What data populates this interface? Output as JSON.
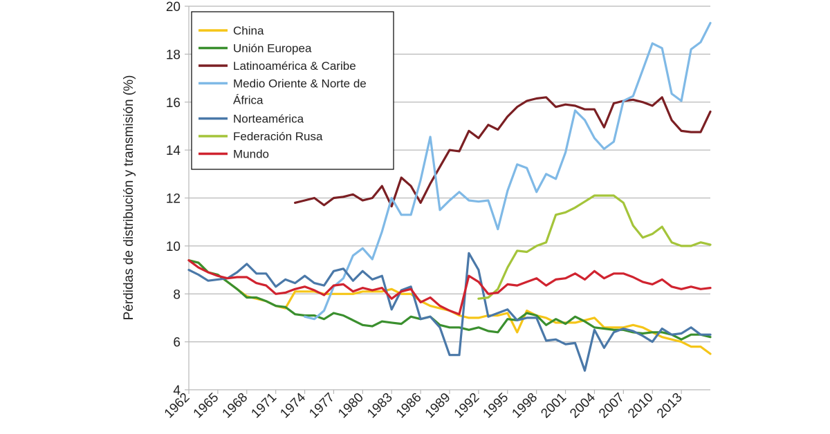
{
  "chart_data": {
    "type": "line",
    "title": "",
    "xlabel": "",
    "ylabel": "Pérdidas de distribución y transmisión (%)",
    "xlim": [
      1962,
      2016
    ],
    "ylim": [
      4,
      20
    ],
    "y_ticks": [
      4,
      6,
      8,
      10,
      12,
      14,
      16,
      18,
      20
    ],
    "x_tick_labels": [
      "1962",
      "1965",
      "1968",
      "1971",
      "1974",
      "1977",
      "1980",
      "1983",
      "1986",
      "1989",
      "1992",
      "1995",
      "1998",
      "2001",
      "2004",
      "2007",
      "2010",
      "2013"
    ],
    "grid": "horizontal",
    "legend_position": "top-left",
    "series": [
      {
        "name": "China",
        "color": "#f5c518",
        "x": [
          1962,
          1963,
          1964,
          1965,
          1966,
          1967,
          1968,
          1969,
          1970,
          1971,
          1972,
          1973,
          1974,
          1975,
          1976,
          1977,
          1978,
          1979,
          1980,
          1981,
          1982,
          1983,
          1984,
          1985,
          1986,
          1987,
          1988,
          1989,
          1990,
          1991,
          1992,
          1993,
          1994,
          1995,
          1996,
          1997,
          1998,
          1999,
          2000,
          2001,
          2002,
          2003,
          2004,
          2005,
          2006,
          2007,
          2008,
          2009,
          2010,
          2011,
          2012,
          2013,
          2014,
          2015,
          2016
        ],
        "y": [
          9.4,
          9.3,
          8.9,
          8.8,
          8.5,
          8.2,
          7.9,
          7.8,
          7.7,
          7.5,
          7.4,
          8.1,
          8.1,
          8.1,
          8.0,
          8.0,
          8.0,
          8.0,
          8.1,
          8.1,
          8.1,
          8.2,
          8.0,
          8.0,
          7.7,
          7.5,
          7.4,
          7.3,
          7.1,
          7.0,
          7.0,
          7.1,
          7.1,
          7.2,
          6.4,
          7.3,
          7.1,
          7.0,
          6.8,
          6.8,
          6.8,
          6.9,
          7.0,
          6.6,
          6.6,
          6.6,
          6.7,
          6.6,
          6.4,
          6.2,
          6.1,
          6.0,
          5.8,
          5.8,
          5.5
        ]
      },
      {
        "name": "Unión Europea",
        "color": "#3a8f2e",
        "x": [
          1962,
          1963,
          1964,
          1965,
          1966,
          1967,
          1968,
          1969,
          1970,
          1971,
          1972,
          1973,
          1974,
          1975,
          1976,
          1977,
          1978,
          1979,
          1980,
          1981,
          1982,
          1983,
          1984,
          1985,
          1986,
          1987,
          1988,
          1989,
          1990,
          1991,
          1992,
          1993,
          1994,
          1995,
          1996,
          1997,
          1998,
          1999,
          2000,
          2001,
          2002,
          2003,
          2004,
          2005,
          2006,
          2007,
          2008,
          2009,
          2010,
          2011,
          2012,
          2013,
          2014,
          2015,
          2016
        ],
        "y": [
          9.4,
          9.3,
          8.9,
          8.8,
          8.5,
          8.2,
          7.85,
          7.85,
          7.7,
          7.5,
          7.45,
          7.15,
          7.1,
          7.1,
          6.95,
          7.2,
          7.1,
          6.9,
          6.7,
          6.65,
          6.85,
          6.8,
          6.75,
          7.05,
          6.95,
          7.05,
          6.7,
          6.6,
          6.6,
          6.5,
          6.6,
          6.45,
          6.4,
          6.95,
          6.9,
          7.2,
          7.1,
          6.7,
          6.95,
          6.75,
          7.05,
          6.85,
          6.6,
          6.55,
          6.5,
          6.5,
          6.4,
          6.35,
          6.4,
          6.4,
          6.3,
          6.1,
          6.3,
          6.3,
          6.2
        ]
      },
      {
        "name": "Latinoamérica & Caribe",
        "color": "#7b1f23",
        "x": [
          1973,
          1974,
          1975,
          1976,
          1977,
          1978,
          1979,
          1980,
          1981,
          1982,
          1983,
          1984,
          1985,
          1986,
          1987,
          1988,
          1989,
          1990,
          1991,
          1992,
          1993,
          1994,
          1995,
          1996,
          1997,
          1998,
          1999,
          2000,
          2001,
          2002,
          2003,
          2004,
          2005,
          2006,
          2007,
          2008,
          2009,
          2010,
          2011,
          2012,
          2013,
          2014,
          2015,
          2016
        ],
        "y": [
          11.8,
          11.9,
          12.0,
          11.7,
          12.0,
          12.05,
          12.15,
          11.9,
          12.0,
          12.5,
          11.65,
          12.85,
          12.5,
          11.8,
          12.6,
          13.3,
          14.0,
          13.95,
          14.8,
          14.5,
          15.05,
          14.85,
          15.4,
          15.8,
          16.05,
          16.15,
          16.2,
          15.8,
          15.9,
          15.85,
          15.7,
          15.7,
          14.95,
          15.95,
          16.05,
          16.1,
          16.0,
          15.85,
          16.2,
          15.25,
          14.8,
          14.75,
          14.75,
          15.6
        ]
      },
      {
        "name": "Medio Oriente & Norte de África",
        "color": "#7fb9e6",
        "x": [
          1974,
          1975,
          1976,
          1977,
          1978,
          1979,
          1980,
          1981,
          1982,
          1983,
          1984,
          1985,
          1986,
          1987,
          1988,
          1989,
          1990,
          1991,
          1992,
          1993,
          1994,
          1995,
          1996,
          1997,
          1998,
          1999,
          2000,
          2001,
          2002,
          2003,
          2004,
          2005,
          2006,
          2007,
          2008,
          2009,
          2010,
          2011,
          2012,
          2013,
          2014,
          2015,
          2016
        ],
        "y": [
          7.05,
          6.95,
          7.3,
          8.3,
          8.65,
          9.6,
          9.9,
          9.45,
          10.6,
          12.0,
          11.3,
          11.3,
          12.75,
          14.55,
          11.5,
          11.9,
          12.25,
          11.9,
          11.85,
          11.9,
          10.7,
          12.3,
          13.4,
          13.25,
          12.25,
          13.0,
          12.8,
          13.9,
          15.65,
          15.25,
          14.5,
          14.05,
          14.35,
          16.05,
          16.25,
          17.35,
          18.45,
          18.25,
          16.35,
          16.05,
          18.2,
          18.5,
          19.3
        ]
      },
      {
        "name": "Norteamérica",
        "color": "#4a78a8",
        "x": [
          1962,
          1963,
          1964,
          1965,
          1966,
          1967,
          1968,
          1969,
          1970,
          1971,
          1972,
          1973,
          1974,
          1975,
          1976,
          1977,
          1978,
          1979,
          1980,
          1981,
          1982,
          1983,
          1984,
          1985,
          1986,
          1987,
          1988,
          1989,
          1990,
          1991,
          1992,
          1993,
          1994,
          1995,
          1996,
          1997,
          1998,
          1999,
          2000,
          2001,
          2002,
          2003,
          2004,
          2005,
          2006,
          2007,
          2008,
          2009,
          2010,
          2011,
          2012,
          2013,
          2014,
          2015,
          2016
        ],
        "y": [
          9.0,
          8.8,
          8.55,
          8.6,
          8.65,
          8.9,
          9.25,
          8.85,
          8.85,
          8.3,
          8.6,
          8.45,
          8.75,
          8.45,
          8.35,
          8.95,
          9.05,
          8.55,
          8.95,
          8.6,
          8.75,
          7.35,
          8.15,
          8.3,
          6.95,
          7.05,
          6.6,
          5.45,
          5.45,
          9.7,
          9.0,
          7.05,
          7.2,
          7.35,
          6.9,
          7.0,
          7.0,
          6.05,
          6.1,
          5.9,
          5.95,
          4.8,
          6.5,
          5.75,
          6.4,
          6.55,
          6.45,
          6.25,
          6.0,
          6.55,
          6.3,
          6.35,
          6.6,
          6.3,
          6.3
        ]
      },
      {
        "name": "Federación Rusa",
        "color": "#a4c43a",
        "x": [
          1992,
          1993,
          1994,
          1995,
          1996,
          1997,
          1998,
          1999,
          2000,
          2001,
          2002,
          2003,
          2004,
          2005,
          2006,
          2007,
          2008,
          2009,
          2010,
          2011,
          2012,
          2013,
          2014,
          2015,
          2016
        ],
        "y": [
          7.8,
          7.85,
          8.2,
          9.1,
          9.8,
          9.75,
          10.0,
          10.15,
          11.3,
          11.4,
          11.6,
          11.85,
          12.1,
          12.1,
          12.1,
          11.8,
          10.85,
          10.35,
          10.5,
          10.8,
          10.15,
          10.0,
          10.0,
          10.15,
          10.05
        ]
      },
      {
        "name": "Mundo",
        "color": "#d0232f",
        "x": [
          1962,
          1963,
          1964,
          1965,
          1966,
          1967,
          1968,
          1969,
          1970,
          1971,
          1972,
          1973,
          1974,
          1975,
          1976,
          1977,
          1978,
          1979,
          1980,
          1981,
          1982,
          1983,
          1984,
          1985,
          1986,
          1987,
          1988,
          1989,
          1990,
          1991,
          1992,
          1993,
          1994,
          1995,
          1996,
          1997,
          1998,
          1999,
          2000,
          2001,
          2002,
          2003,
          2004,
          2005,
          2006,
          2007,
          2008,
          2009,
          2010,
          2011,
          2012,
          2013,
          2014,
          2015,
          2016
        ],
        "y": [
          9.4,
          9.1,
          8.9,
          8.75,
          8.65,
          8.7,
          8.7,
          8.45,
          8.35,
          8.0,
          8.05,
          8.2,
          8.3,
          8.15,
          7.95,
          8.35,
          8.4,
          8.1,
          8.25,
          8.15,
          8.25,
          7.8,
          8.1,
          8.2,
          7.65,
          7.85,
          7.5,
          7.3,
          7.15,
          8.75,
          8.5,
          8.0,
          8.05,
          8.4,
          8.35,
          8.5,
          8.65,
          8.35,
          8.6,
          8.65,
          8.85,
          8.6,
          8.95,
          8.65,
          8.85,
          8.85,
          8.7,
          8.5,
          8.4,
          8.6,
          8.3,
          8.2,
          8.3,
          8.2,
          8.25
        ]
      }
    ]
  }
}
